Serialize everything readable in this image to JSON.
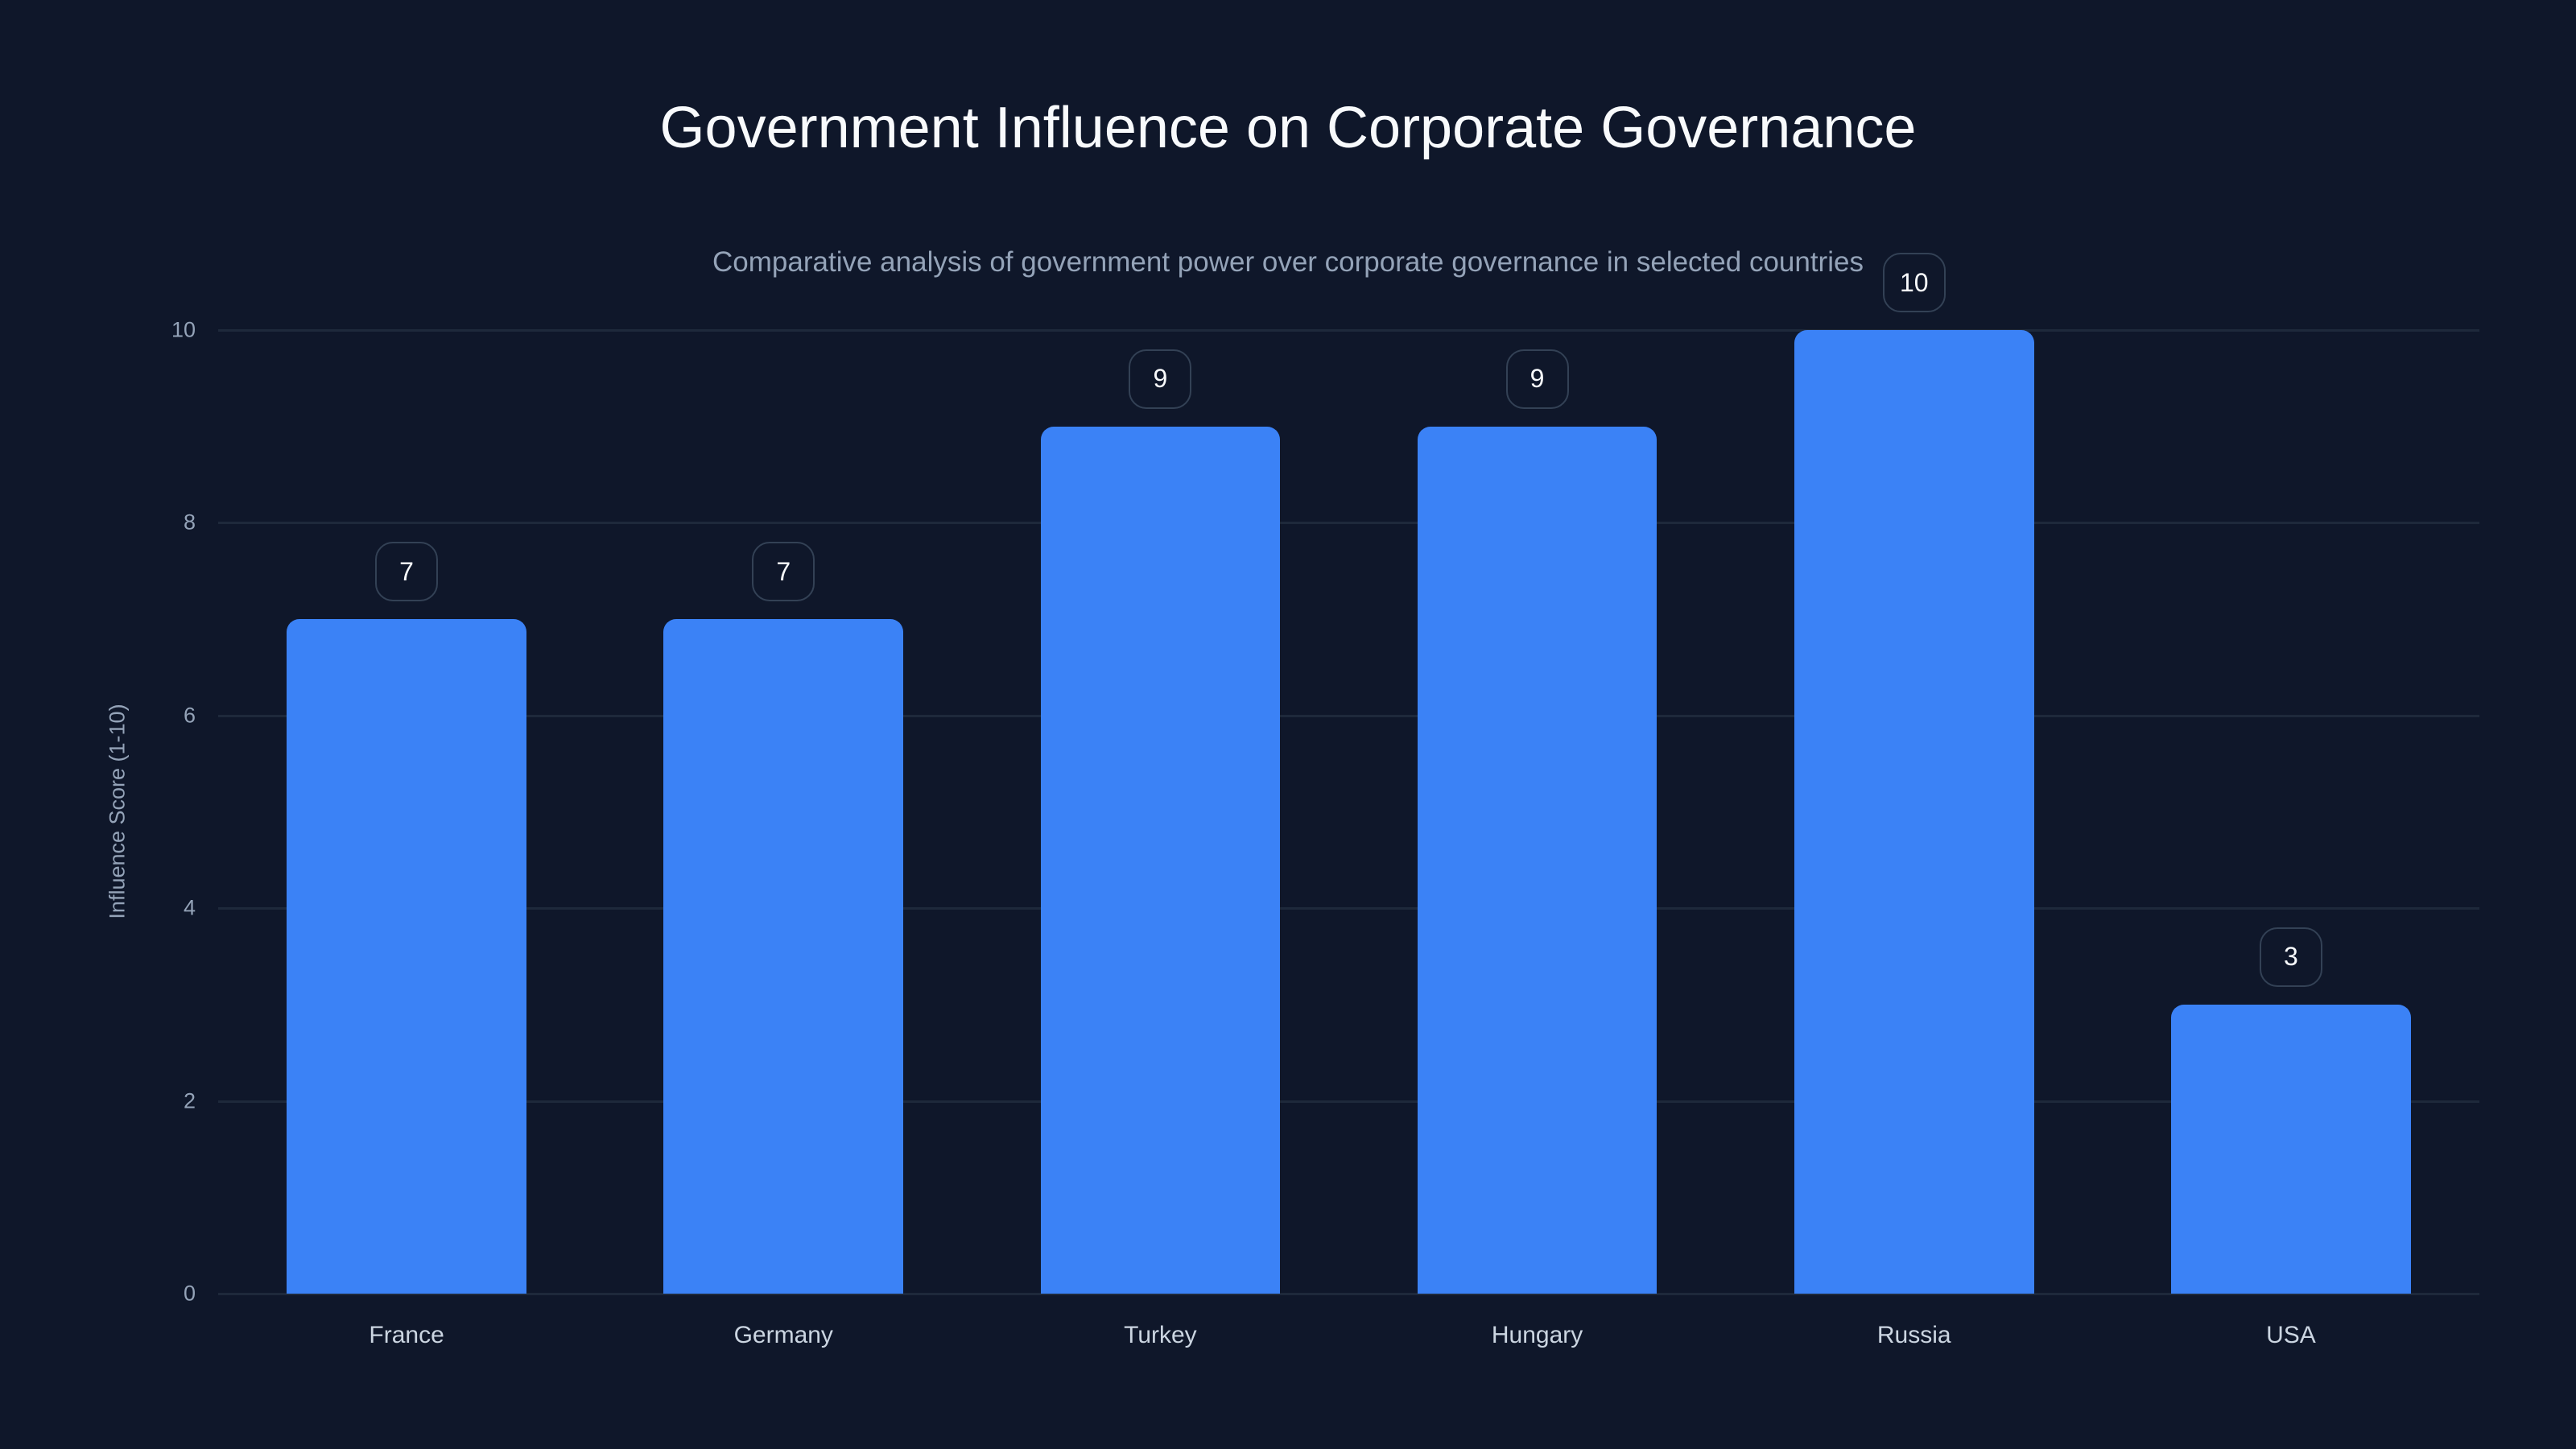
{
  "chart_data": {
    "type": "bar",
    "title": "Government Influence on Corporate Governance",
    "subtitle": "Comparative analysis of government power over corporate governance in selected countries",
    "xlabel": "",
    "ylabel": "Influence Score (1-10)",
    "categories": [
      "France",
      "Germany",
      "Turkey",
      "Hungary",
      "Russia",
      "USA"
    ],
    "values": [
      7,
      7,
      9,
      9,
      10,
      3
    ],
    "ylim": [
      0,
      10
    ],
    "yticks": [
      "0",
      "2",
      "4",
      "6",
      "8",
      "10"
    ],
    "grid": true,
    "legend": null,
    "data_labels": true,
    "colors": {
      "background": "#0f172a",
      "bar": "#3b82f6",
      "grid": "#1e293b",
      "tick_text": "#94a3b8",
      "category_text": "#cbd5e1",
      "label_border": "#334155"
    }
  }
}
